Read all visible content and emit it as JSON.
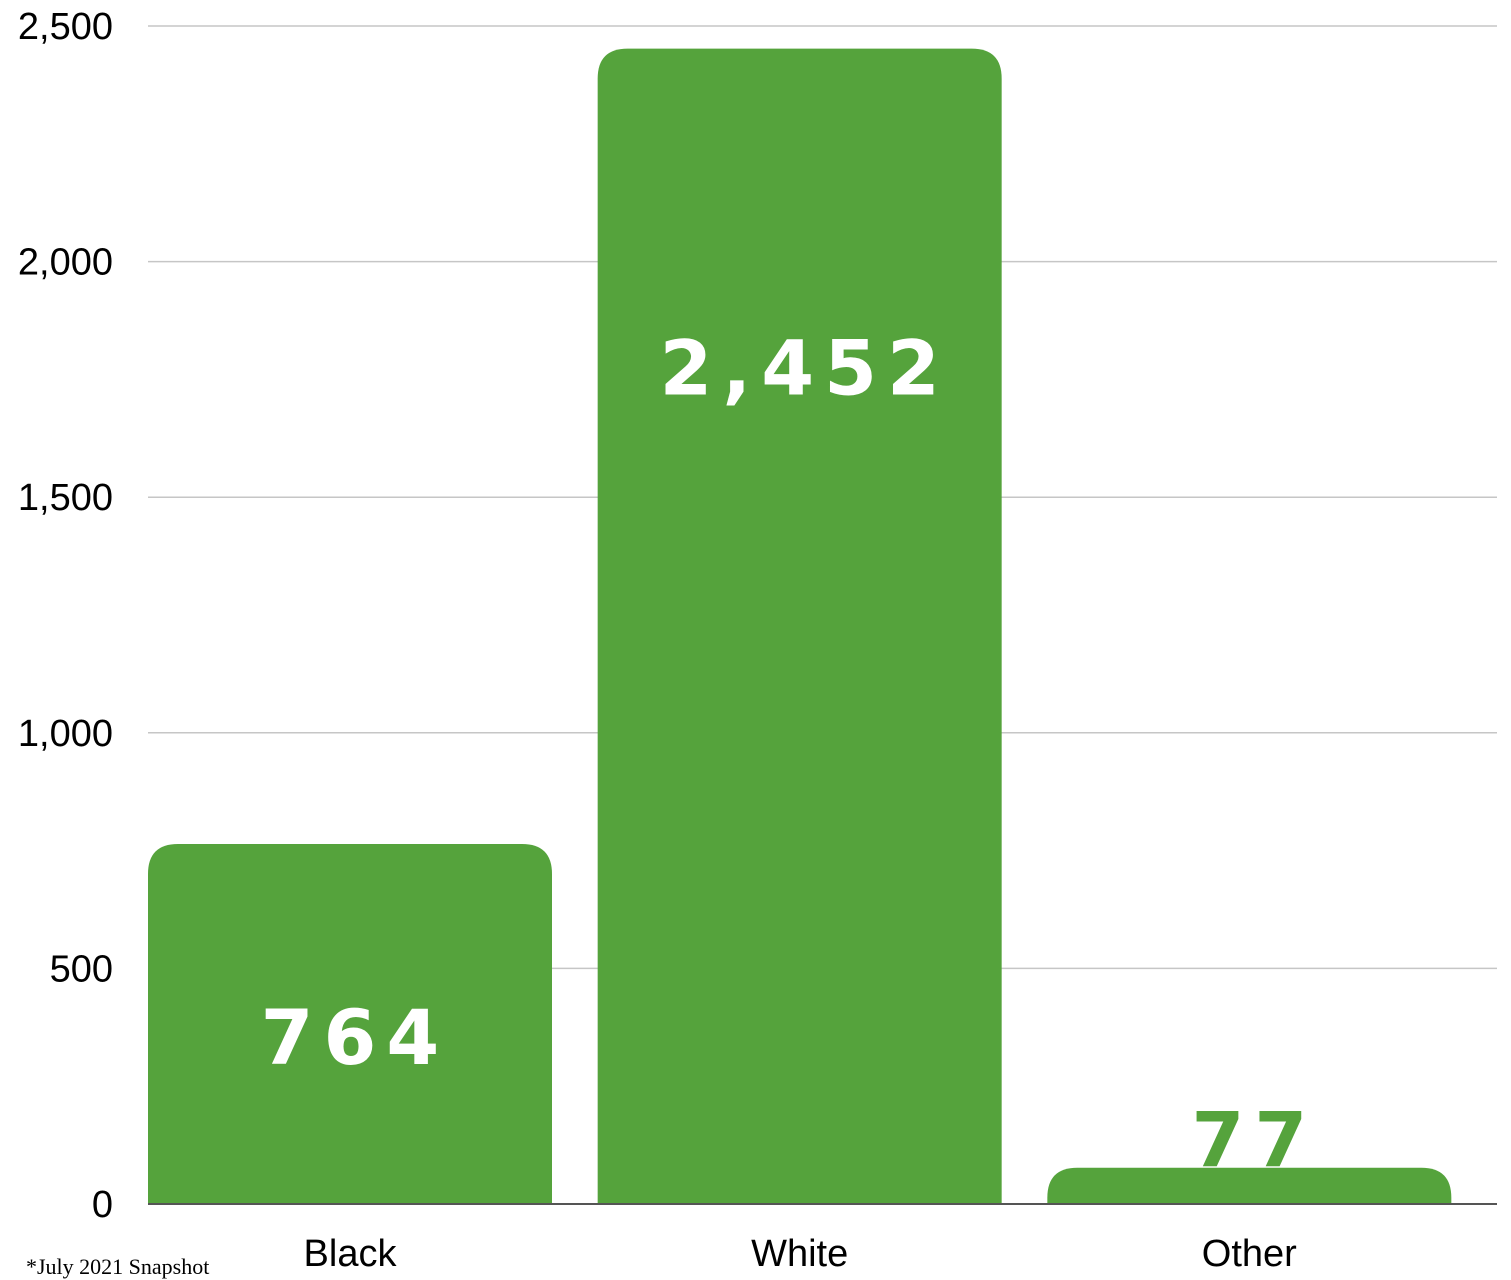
{
  "chart_data": {
    "type": "bar",
    "categories": [
      "Black",
      "White",
      "Other"
    ],
    "values": [
      764,
      2452,
      77
    ],
    "data_labels": [
      "764",
      "2,452",
      "77"
    ],
    "ylim": [
      0,
      2500
    ],
    "yticks": [
      0,
      500,
      1000,
      1500,
      2000,
      2500
    ],
    "ytick_labels": [
      "0",
      "500",
      "1,000",
      "1,500",
      "2,000",
      "2,500"
    ],
    "grid": true,
    "bar_color": "#55a33c",
    "data_label_inside_color": "#ffffff",
    "data_label_outside_color": "#55a33c"
  },
  "footnote": "*July 2021 Snapshot"
}
